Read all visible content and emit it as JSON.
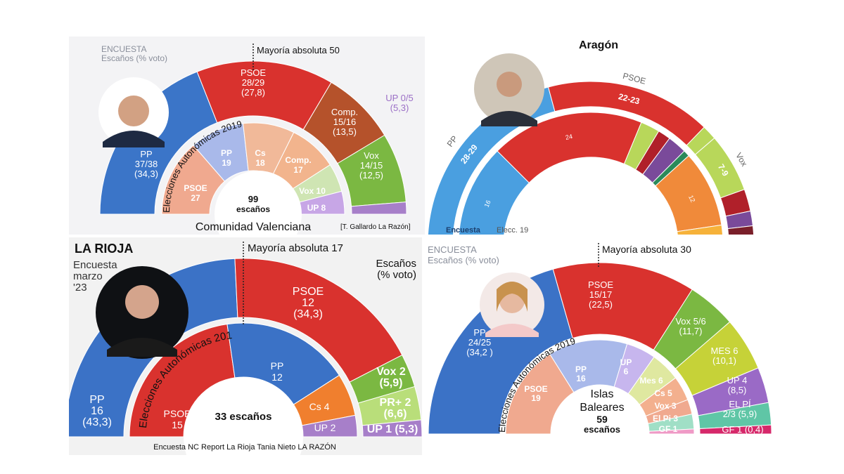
{
  "chart_data": [
    {
      "type": "pie",
      "title": "Comunidad Valenciana",
      "legend": {
        "line1": "ENCUESTA",
        "line2": "Escaños (% voto)"
      },
      "majority_label": "Mayoría absoluta 50",
      "inner_title": "Elecciones Autonómicas 2019",
      "inner_total": {
        "line1": "99",
        "line2": "escaños"
      },
      "credit": "[T. Gallardo La Razón]",
      "colors": {
        "PP": "#3b75c8",
        "PSOE": "#d9322e",
        "Comp.": "#b5522b",
        "Vox": "#7bb842",
        "UP": "#a77fc9",
        "Cs": "#f0b496"
      },
      "outer": [
        {
          "label": [
            "PP",
            "37/38",
            "(34,3)"
          ],
          "value": 37.5
        },
        {
          "label": [
            "PSOE",
            "28/29",
            "(27,8)"
          ],
          "value": 28.5
        },
        {
          "label": [
            "Comp.",
            "15/16",
            "(13,5)"
          ],
          "value": 15.5
        },
        {
          "label": [
            "Vox",
            "14/15",
            "(12,5)"
          ],
          "value": 14.5
        },
        {
          "label": [
            "UP 0/5",
            "(5,3)"
          ],
          "value": 2.5
        }
      ],
      "inner": [
        {
          "label": [
            "PSOE",
            "27"
          ],
          "value": 27
        },
        {
          "label": [
            "PP",
            "19"
          ],
          "value": 19
        },
        {
          "label": [
            "Cs",
            "18"
          ],
          "value": 18
        },
        {
          "label": [
            "Comp.",
            "17"
          ],
          "value": 17
        },
        {
          "label": [
            "Vox 10"
          ],
          "value": 10
        },
        {
          "label": [
            "UP 8"
          ],
          "value": 8
        }
      ]
    },
    {
      "type": "pie",
      "title": "Aragón",
      "left_label": "Encuesta",
      "right_label": "Elecc. 19",
      "outer": [
        {
          "label": [
            "PP"
          ],
          "inside": "28-29",
          "value": 28.5
        },
        {
          "label": [
            "PSOE"
          ],
          "inside": "22-23",
          "value": 22.5
        },
        {
          "label": [],
          "inside": "",
          "value": 2
        },
        {
          "label": [
            "Vox"
          ],
          "inside": "7-9",
          "value": 8
        },
        {
          "label": [],
          "inside": "",
          "value": 3
        },
        {
          "label": [],
          "inside": "",
          "value": 2
        },
        {
          "label": [],
          "inside": "",
          "value": 1.5
        },
        {
          "label": [],
          "inside": "",
          "value": 1
        }
      ],
      "inner": [
        {
          "inside": "16",
          "value": 16
        },
        {
          "inside": "24",
          "value": 24
        },
        {
          "inside": "",
          "value": 3
        },
        {
          "inside": "",
          "value": 2
        },
        {
          "inside": "",
          "value": 3
        },
        {
          "inside": "",
          "value": 1
        },
        {
          "inside": "12",
          "value": 12
        },
        {
          "inside": "",
          "value": 3
        }
      ]
    },
    {
      "type": "pie",
      "title": "LA RIOJA",
      "legend": {
        "line1": "Encuesta",
        "line2": "marzo",
        "line3": "'23"
      },
      "legend_right": {
        "line1": "Escaños",
        "line2": "(% voto)"
      },
      "majority_label": "Mayoría absoluta 17",
      "inner_title": "Elecciones Autonómicas 2019",
      "inner_total": {
        "line1": "33 escaños"
      },
      "credit": "Encuesta NC Report La Rioja Tania Nieto LA RAZÓN",
      "outer": [
        {
          "label": [
            "PP",
            "16",
            "(43,3)"
          ],
          "value": 16
        },
        {
          "label": [
            "PSOE",
            "12",
            "(34,3)"
          ],
          "value": 12
        },
        {
          "label": [
            "Vox 2",
            "(5,9)"
          ],
          "value": 2
        },
        {
          "label": [
            "PR+ 2",
            "(6,6)"
          ],
          "value": 2
        },
        {
          "label": [
            "UP 1 (5,3)"
          ],
          "value": 1
        }
      ],
      "inner": [
        {
          "label": [
            "PSOE",
            "15"
          ],
          "value": 15
        },
        {
          "label": [
            "PP",
            "12"
          ],
          "value": 12
        },
        {
          "label": [
            "Cs 4"
          ],
          "value": 4
        },
        {
          "label": [
            "UP 2"
          ],
          "value": 2
        }
      ]
    },
    {
      "type": "pie",
      "title": "Islas Baleares",
      "legend": {
        "line1": "ENCUESTA",
        "line2": "Escaños (% voto)"
      },
      "majority_label": "Mayoría absoluta 30",
      "inner_title": "Elecciones Autonómicas 2019",
      "inner_total": {
        "line1": "Islas",
        "line2": "Baleares",
        "line3": "59",
        "line4": "escaños"
      },
      "outer": [
        {
          "label": [
            "PP",
            "24/25",
            "(34,2 )"
          ],
          "value": 24.5
        },
        {
          "label": [
            "PSOE",
            "15/17",
            "(22,5)"
          ],
          "value": 16
        },
        {
          "label": [
            "Vox 5/6",
            "(11,7)"
          ],
          "value": 5.5
        },
        {
          "label": [
            "MES 6",
            "(10,1)"
          ],
          "value": 6
        },
        {
          "label": [
            "UP 4",
            "(8,5)"
          ],
          "value": 4
        },
        {
          "label": [
            "EL PÍ",
            "2/3 (5,9)"
          ],
          "value": 2.5
        },
        {
          "label": [
            "GF 1 (0,4)"
          ],
          "value": 1
        }
      ],
      "inner": [
        {
          "label": [
            "PSOE",
            "19"
          ],
          "value": 19
        },
        {
          "label": [
            "PP",
            "16"
          ],
          "value": 16
        },
        {
          "label": [
            "UP",
            "6"
          ],
          "value": 6
        },
        {
          "label": [
            "Mes 6"
          ],
          "value": 6
        },
        {
          "label": [
            "Cs 5"
          ],
          "value": 5
        },
        {
          "label": [
            "Vox 3"
          ],
          "value": 3
        },
        {
          "label": [
            "El Pi 3"
          ],
          "value": 3
        },
        {
          "label": [
            "GF 1"
          ],
          "value": 1
        }
      ]
    }
  ]
}
